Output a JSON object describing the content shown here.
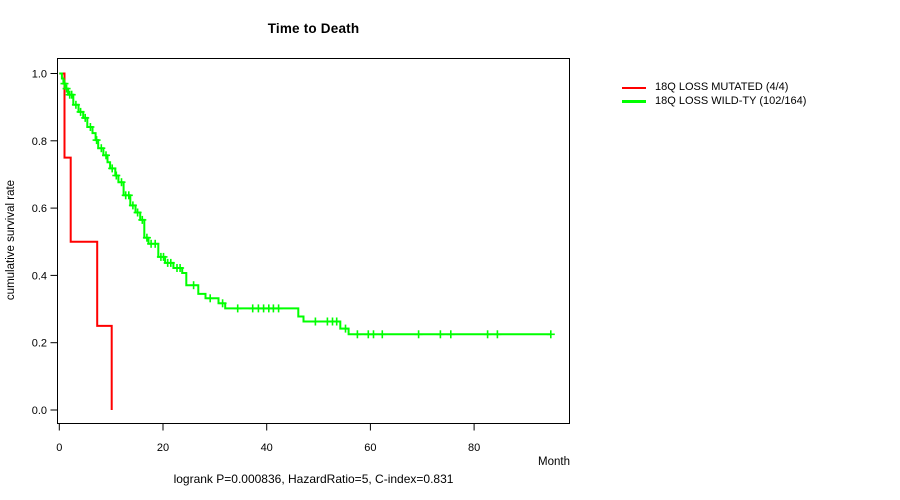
{
  "chart_data": {
    "type": "km_step",
    "title": "Time to Death",
    "xlabel": "Month",
    "ylabel": "cumulative survival rate",
    "footer_annotation": "logrank P=0.000836, HazardRatio=5, C-index=0.831",
    "x_ticks": [
      {
        "v": 0,
        "label": "0"
      },
      {
        "v": 20,
        "label": "20"
      },
      {
        "v": 40,
        "label": "40"
      },
      {
        "v": 60,
        "label": "60"
      },
      {
        "v": 80,
        "label": "80"
      }
    ],
    "y_ticks": [
      {
        "v": 0.0,
        "label": "0.0"
      },
      {
        "v": 0.2,
        "label": "0.2"
      },
      {
        "v": 0.4,
        "label": "0.4"
      },
      {
        "v": 0.6,
        "label": "0.6"
      },
      {
        "v": 0.8,
        "label": "0.8"
      },
      {
        "v": 1.0,
        "label": "1.0"
      }
    ],
    "xlim": [
      0,
      98
    ],
    "ylim": [
      0,
      1.05
    ],
    "grid": false,
    "legend_position": "right-outside",
    "series": [
      {
        "name": "18Q LOSS MUTATED (4/4)",
        "color": "#ff0000",
        "steps": [
          [
            0,
            1.0
          ],
          [
            1.0,
            0.75
          ],
          [
            2.2,
            0.5
          ],
          [
            7.3,
            0.25
          ],
          [
            10.1,
            0.0
          ]
        ],
        "end": 10.1,
        "censors": []
      },
      {
        "name": "18Q LOSS WILD-TY (102/164)",
        "color": "#00ff00",
        "steps": [
          [
            0,
            1.0
          ],
          [
            0.5,
            0.985
          ],
          [
            0.8,
            0.97
          ],
          [
            1.2,
            0.955
          ],
          [
            1.7,
            0.937
          ],
          [
            2.7,
            0.907
          ],
          [
            3.7,
            0.886
          ],
          [
            4.6,
            0.868
          ],
          [
            5.4,
            0.841
          ],
          [
            6.4,
            0.823
          ],
          [
            7.0,
            0.802
          ],
          [
            7.5,
            0.778
          ],
          [
            8.5,
            0.757
          ],
          [
            9.3,
            0.736
          ],
          [
            9.8,
            0.718
          ],
          [
            10.8,
            0.697
          ],
          [
            11.4,
            0.677
          ],
          [
            12.4,
            0.638
          ],
          [
            13.7,
            0.608
          ],
          [
            14.7,
            0.587
          ],
          [
            15.6,
            0.565
          ],
          [
            16.4,
            0.512
          ],
          [
            17.2,
            0.494
          ],
          [
            19.1,
            0.455
          ],
          [
            20.4,
            0.437
          ],
          [
            22.0,
            0.422
          ],
          [
            23.7,
            0.407
          ],
          [
            24.5,
            0.371
          ],
          [
            26.8,
            0.345
          ],
          [
            28.2,
            0.332
          ],
          [
            30.7,
            0.317
          ],
          [
            32.0,
            0.302
          ],
          [
            46.1,
            0.278
          ],
          [
            47.1,
            0.263
          ],
          [
            54.2,
            0.242
          ],
          [
            55.8,
            0.225
          ]
        ],
        "end": 94.8,
        "censors": [
          [
            1.0,
            0.97
          ],
          [
            1.4,
            0.955
          ],
          [
            2.0,
            0.937
          ],
          [
            2.4,
            0.937
          ],
          [
            3.2,
            0.907
          ],
          [
            4.1,
            0.886
          ],
          [
            5.0,
            0.868
          ],
          [
            6.0,
            0.841
          ],
          [
            7.2,
            0.802
          ],
          [
            8.1,
            0.778
          ],
          [
            9.0,
            0.757
          ],
          [
            10.2,
            0.718
          ],
          [
            11.0,
            0.697
          ],
          [
            12.0,
            0.677
          ],
          [
            12.8,
            0.638
          ],
          [
            13.4,
            0.638
          ],
          [
            14.2,
            0.608
          ],
          [
            15.1,
            0.587
          ],
          [
            16.0,
            0.565
          ],
          [
            16.9,
            0.512
          ],
          [
            17.7,
            0.494
          ],
          [
            18.5,
            0.494
          ],
          [
            19.6,
            0.455
          ],
          [
            20.1,
            0.455
          ],
          [
            20.9,
            0.437
          ],
          [
            21.5,
            0.437
          ],
          [
            22.7,
            0.422
          ],
          [
            23.3,
            0.422
          ],
          [
            25.9,
            0.371
          ],
          [
            29.1,
            0.332
          ],
          [
            31.5,
            0.317
          ],
          [
            34.4,
            0.302
          ],
          [
            37.3,
            0.302
          ],
          [
            38.4,
            0.302
          ],
          [
            39.4,
            0.302
          ],
          [
            40.4,
            0.302
          ],
          [
            41.3,
            0.302
          ],
          [
            42.3,
            0.302
          ],
          [
            49.4,
            0.263
          ],
          [
            51.7,
            0.263
          ],
          [
            52.7,
            0.263
          ],
          [
            53.5,
            0.263
          ],
          [
            55.2,
            0.242
          ],
          [
            57.5,
            0.225
          ],
          [
            59.6,
            0.225
          ],
          [
            60.6,
            0.225
          ],
          [
            62.3,
            0.225
          ],
          [
            69.3,
            0.225
          ],
          [
            73.5,
            0.225
          ],
          [
            75.5,
            0.225
          ],
          [
            82.6,
            0.225
          ],
          [
            84.5,
            0.225
          ],
          [
            94.8,
            0.225
          ]
        ]
      }
    ]
  }
}
